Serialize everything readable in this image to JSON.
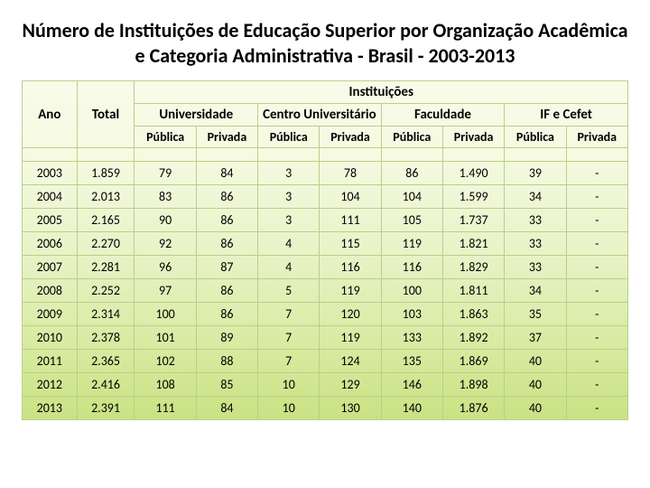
{
  "title": "Número de Instituições de Educação Superior por Organização Acadêmica e Categoria Administrativa - Brasil - 2003-2013",
  "headers": {
    "ano": "Ano",
    "total": "Total",
    "instituicoes": "Instituições",
    "groups": {
      "universidade": "Universidade",
      "centro": "Centro Universitário",
      "faculdade": "Faculdade",
      "ifcefet": "IF e Cefet"
    },
    "sub": {
      "publica": "Pública",
      "privada": "Privada"
    }
  },
  "columns": [
    "ano",
    "total",
    "uni_pub",
    "uni_priv",
    "cen_pub",
    "cen_priv",
    "fac_pub",
    "fac_priv",
    "if_pub",
    "if_priv"
  ],
  "rows": [
    {
      "ano": "2003",
      "total": "1.859",
      "uni_pub": "79",
      "uni_priv": "84",
      "cen_pub": "3",
      "cen_priv": "78",
      "fac_pub": "86",
      "fac_priv": "1.490",
      "if_pub": "39",
      "if_priv": "-"
    },
    {
      "ano": "2004",
      "total": "2.013",
      "uni_pub": "83",
      "uni_priv": "86",
      "cen_pub": "3",
      "cen_priv": "104",
      "fac_pub": "104",
      "fac_priv": "1.599",
      "if_pub": "34",
      "if_priv": "-"
    },
    {
      "ano": "2005",
      "total": "2.165",
      "uni_pub": "90",
      "uni_priv": "86",
      "cen_pub": "3",
      "cen_priv": "111",
      "fac_pub": "105",
      "fac_priv": "1.737",
      "if_pub": "33",
      "if_priv": "-"
    },
    {
      "ano": "2006",
      "total": "2.270",
      "uni_pub": "92",
      "uni_priv": "86",
      "cen_pub": "4",
      "cen_priv": "115",
      "fac_pub": "119",
      "fac_priv": "1.821",
      "if_pub": "33",
      "if_priv": "-"
    },
    {
      "ano": "2007",
      "total": "2.281",
      "uni_pub": "96",
      "uni_priv": "87",
      "cen_pub": "4",
      "cen_priv": "116",
      "fac_pub": "116",
      "fac_priv": "1.829",
      "if_pub": "33",
      "if_priv": "-"
    },
    {
      "ano": "2008",
      "total": "2.252",
      "uni_pub": "97",
      "uni_priv": "86",
      "cen_pub": "5",
      "cen_priv": "119",
      "fac_pub": "100",
      "fac_priv": "1.811",
      "if_pub": "34",
      "if_priv": "-"
    },
    {
      "ano": "2009",
      "total": "2.314",
      "uni_pub": "100",
      "uni_priv": "86",
      "cen_pub": "7",
      "cen_priv": "120",
      "fac_pub": "103",
      "fac_priv": "1.863",
      "if_pub": "35",
      "if_priv": "-"
    },
    {
      "ano": "2010",
      "total": "2.378",
      "uni_pub": "101",
      "uni_priv": "89",
      "cen_pub": "7",
      "cen_priv": "119",
      "fac_pub": "133",
      "fac_priv": "1.892",
      "if_pub": "37",
      "if_priv": "-"
    },
    {
      "ano": "2011",
      "total": "2.365",
      "uni_pub": "102",
      "uni_priv": "88",
      "cen_pub": "7",
      "cen_priv": "124",
      "fac_pub": "135",
      "fac_priv": "1.869",
      "if_pub": "40",
      "if_priv": "-"
    },
    {
      "ano": "2012",
      "total": "2.416",
      "uni_pub": "108",
      "uni_priv": "85",
      "cen_pub": "10",
      "cen_priv": "129",
      "fac_pub": "146",
      "fac_priv": "1.898",
      "if_pub": "40",
      "if_priv": "-"
    },
    {
      "ano": "2013",
      "total": "2.391",
      "uni_pub": "111",
      "uni_priv": "84",
      "cen_pub": "10",
      "cen_priv": "130",
      "fac_pub": "140",
      "fac_priv": "1.876",
      "if_pub": "40",
      "if_priv": "-"
    }
  ],
  "style": {
    "border_color": "#b9cf8a",
    "bg_gradient_top": "#f8fbe8",
    "bg_gradient_bottom": "#c9e283",
    "title_fontsize": 22,
    "header_fontsize": 15,
    "cell_fontsize": 14,
    "font_family": "Calibri"
  }
}
